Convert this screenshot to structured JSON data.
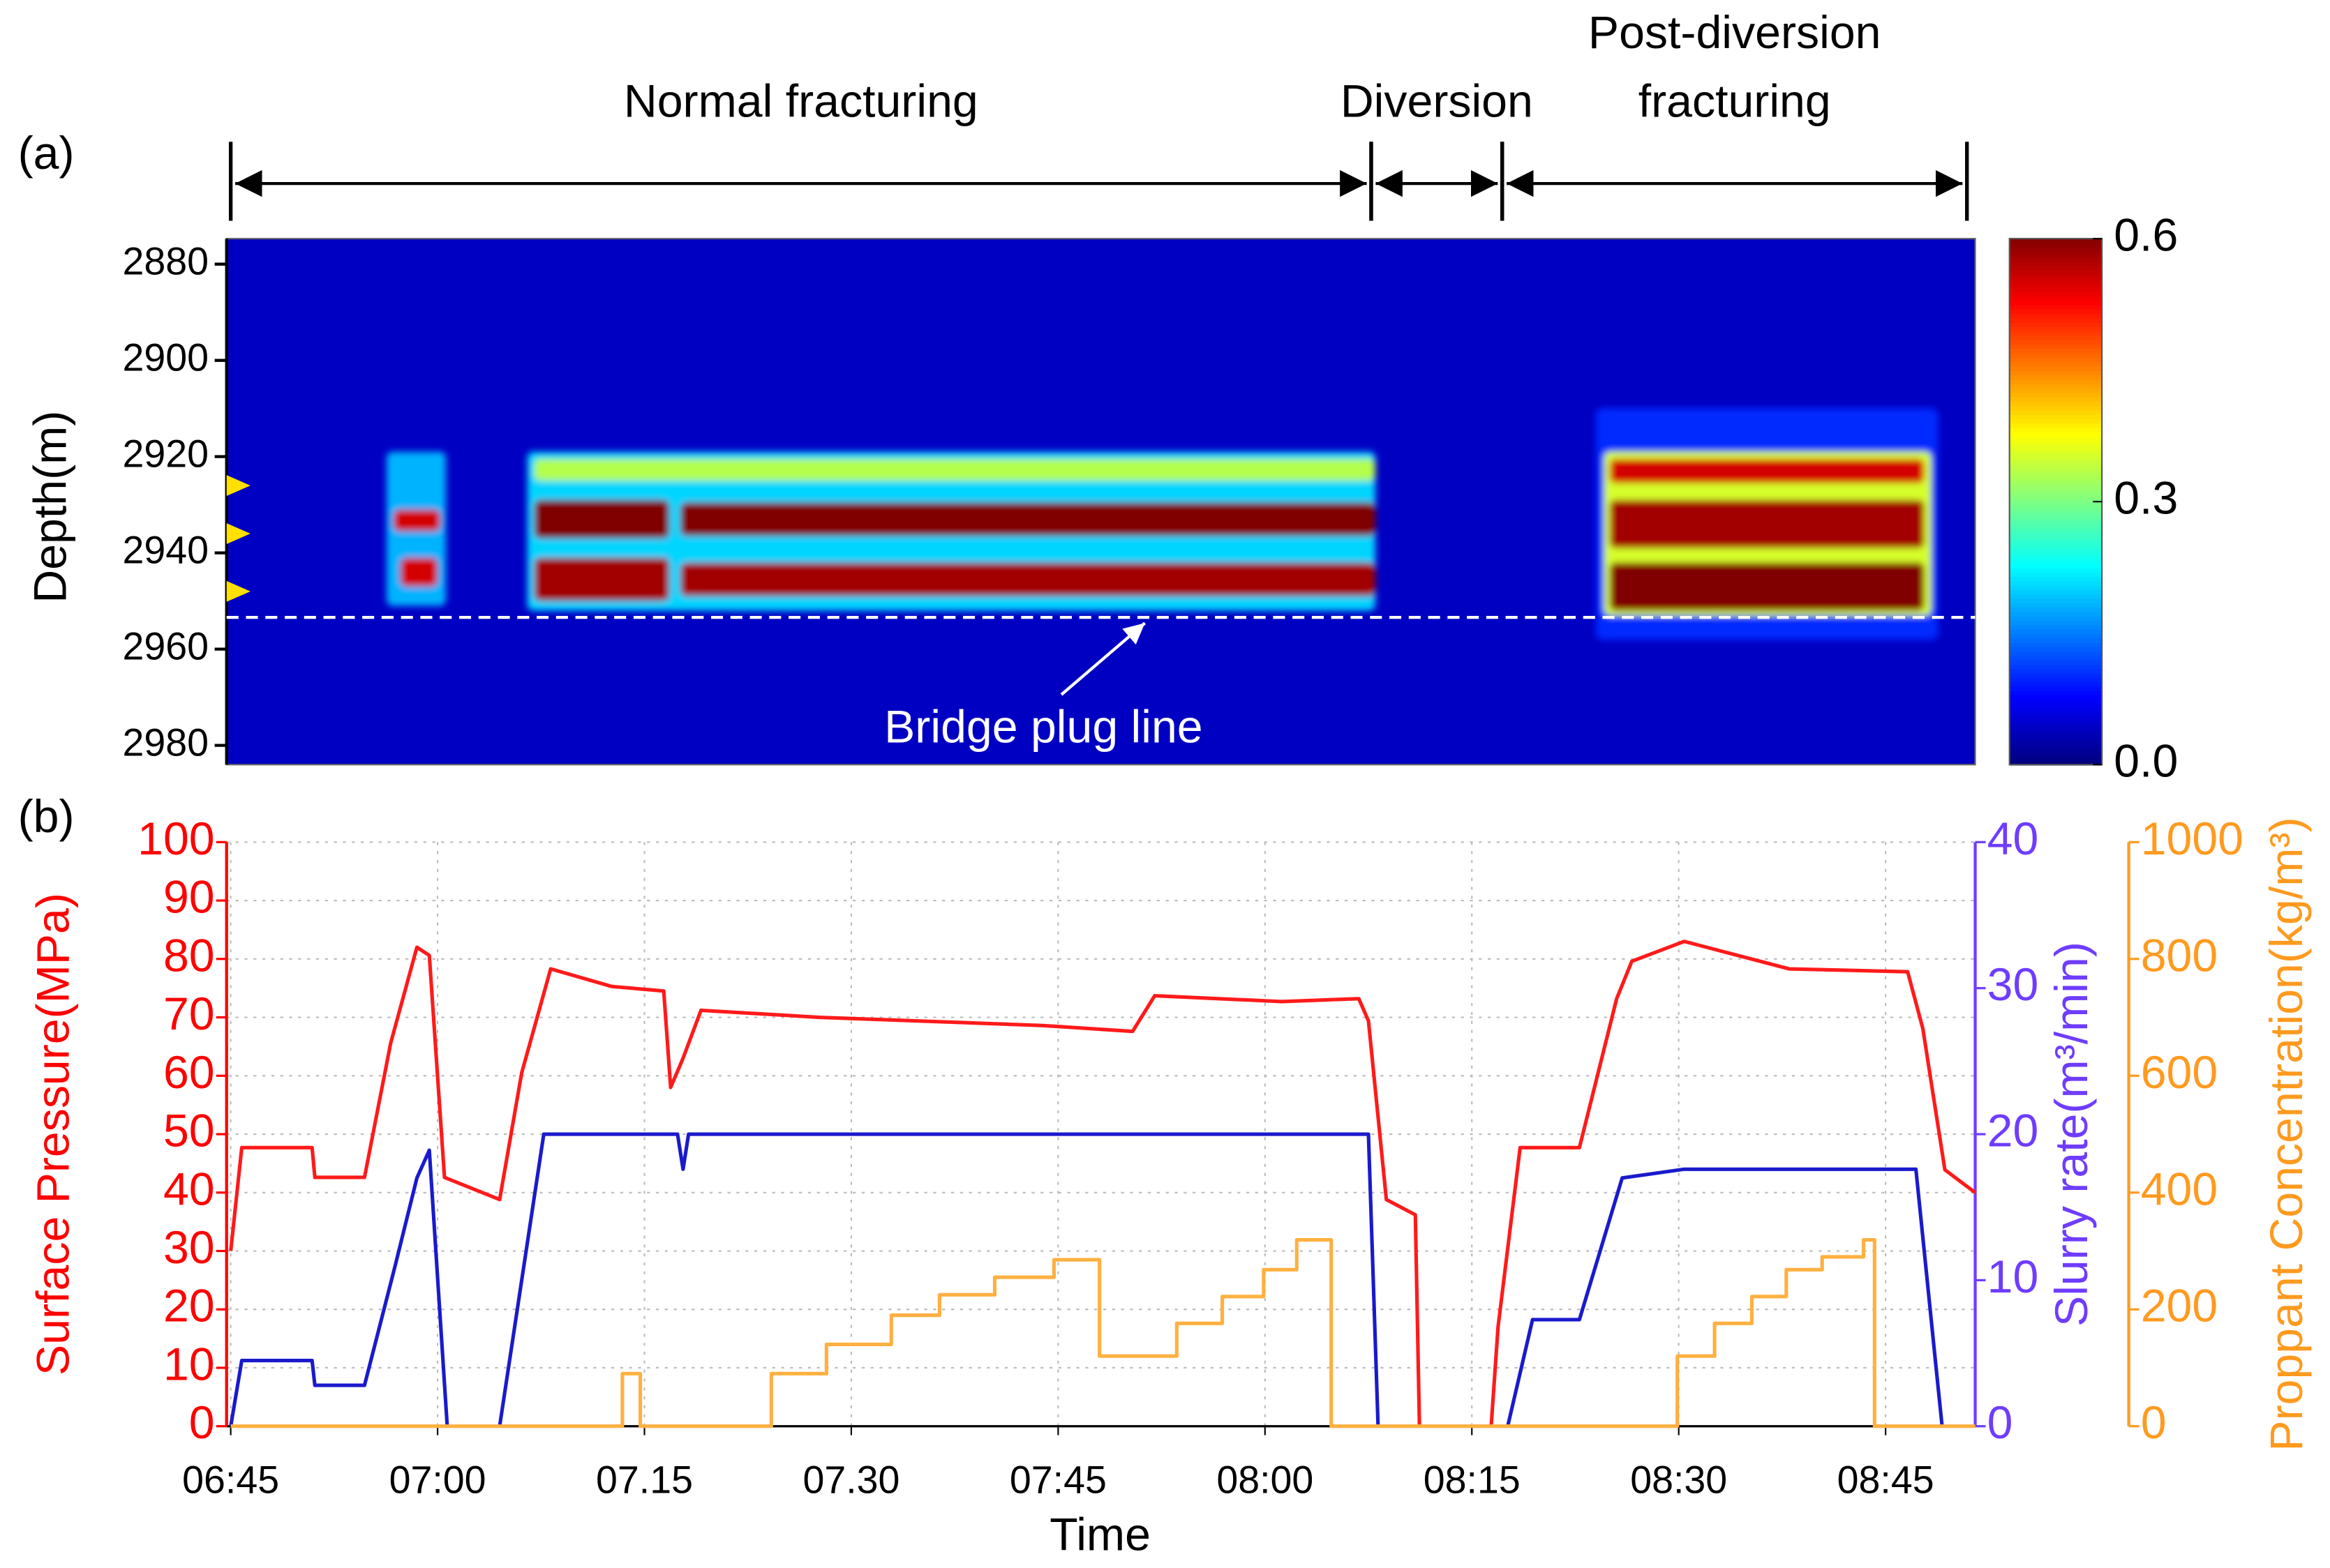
{
  "chart_data": [
    {
      "type": "heatmap",
      "panel_label": "(a)",
      "ylabel": "Depth(m)",
      "xlim": [
        404.7,
        531.5
      ],
      "ylim": [
        2874.7,
        2984
      ],
      "y_inverted": true,
      "yticks": [
        2880,
        2900,
        2920,
        2940,
        2960,
        2980
      ],
      "colormap": "jet",
      "colorbar_lim": [
        0,
        0.6
      ],
      "colorbar_ticks": [
        {
          "value": 0,
          "label": "0.0"
        },
        0.3,
        0.6
      ],
      "background": 0.04,
      "zones": [
        {
          "x": [
            416.3,
            420.6
          ],
          "y": [
            2919,
            2951
          ],
          "value": 0.18
        },
        {
          "x": [
            416.8,
            420.2
          ],
          "y": [
            2931,
            2935.5
          ],
          "value": 0.55
        },
        {
          "x": [
            417.3,
            420
          ],
          "y": [
            2941,
            2947
          ],
          "value": 0.55
        },
        {
          "x": [
            426.5,
            488
          ],
          "y": [
            2919,
            2952
          ],
          "value": 0.2
        },
        {
          "x": [
            427,
            488
          ],
          "y": [
            2920.5,
            2925
          ],
          "value": 0.33
        },
        {
          "x": [
            427,
            436.8
          ],
          "y": [
            2929,
            2937
          ],
          "value": 0.6
        },
        {
          "x": [
            437.6,
            488
          ],
          "y": [
            2929.5,
            2936.5
          ],
          "value": 0.6
        },
        {
          "x": [
            427,
            436.8
          ],
          "y": [
            2941,
            2950
          ],
          "value": 0.58
        },
        {
          "x": [
            437.6,
            488
          ],
          "y": [
            2942,
            2949
          ],
          "value": 0.58
        },
        {
          "x": [
            504,
            528.8
          ],
          "y": [
            2910,
            2958
          ],
          "value": 0.1
        },
        {
          "x": [
            504.6,
            528.3
          ],
          "y": [
            2919,
            2953
          ],
          "value": 0.35
        },
        {
          "x": [
            505,
            527.8
          ],
          "y": [
            2920.5,
            2925.5
          ],
          "value": 0.55
        },
        {
          "x": [
            505,
            527.8
          ],
          "y": [
            2929,
            2939
          ],
          "value": 0.58
        },
        {
          "x": [
            505,
            527.8
          ],
          "y": [
            2942,
            2952
          ],
          "value": 0.6
        }
      ],
      "phases": [
        {
          "label": [
            "Normal fracturing"
          ],
          "start": 405,
          "end": 487.7
        },
        {
          "label": [
            "Diversion"
          ],
          "start": 487.7,
          "end": 497.2
        },
        {
          "label": [
            "Post-diversion",
            "fracturing"
          ],
          "start": 497.2,
          "end": 530.9
        }
      ],
      "perforations": [
        2926,
        2936,
        2948
      ],
      "bridge_plug": {
        "depth": 2953.4,
        "label": "Bridge plug line"
      }
    },
    {
      "type": "line",
      "panel_label": "(b)",
      "xlabel": "Time",
      "xlim": [
        404.7,
        531.5
      ],
      "xticks": [
        {
          "value": 405,
          "label": "06:45"
        },
        {
          "value": 420,
          "label": "07:00"
        },
        {
          "value": 435,
          "label": "07.15"
        },
        {
          "value": 450,
          "label": "07.30"
        },
        {
          "value": 465,
          "label": "07:45"
        },
        {
          "value": 480,
          "label": "08:00"
        },
        {
          "value": 495,
          "label": "08:15"
        },
        {
          "value": 510,
          "label": "08:30"
        },
        {
          "value": 525,
          "label": "08:45"
        }
      ],
      "ylim": [
        0,
        100
      ],
      "yticks": [
        0,
        10,
        20,
        30,
        40,
        50,
        60,
        70,
        80,
        90,
        100
      ],
      "ylabel": "Surface Pressure(MPa)",
      "ycolor": "#ff0000",
      "y2lim": [
        0,
        40
      ],
      "y2ticks": [
        0,
        10,
        20,
        30,
        40
      ],
      "y2label": "Slurry rate(m³/min)",
      "y2color": "#6f3cff",
      "y3lim": [
        0,
        1000
      ],
      "y3ticks": [
        0,
        200,
        400,
        600,
        800,
        1000
      ],
      "y3label": "Proppant Concentration(kg/m³)",
      "y3color": "#ff9a1f",
      "grid": true,
      "series": [
        {
          "name": "Surface Pressure",
          "axis": "y",
          "color": "#ff1a1a",
          "x": [
            405,
            405.8,
            410.9,
            411.1,
            414.7,
            416.6,
            418.5,
            419.4,
            420.5,
            424.5,
            426.1,
            428.2,
            432.6,
            436.4,
            436.9,
            437.8,
            439.1,
            447.7,
            463.9,
            470.4,
            472,
            481.2,
            486.8,
            487.5,
            488.8,
            490.9,
            491.2,
            494,
            496.4,
            496.9,
            498.5,
            502.8,
            505.5,
            506.6,
            510.4,
            518,
            526.6,
            527.7,
            529.3,
            531.5
          ],
          "values": [
            30,
            47.7,
            47.7,
            42.6,
            42.6,
            65.6,
            82,
            80.6,
            42.6,
            38.8,
            60.5,
            78.3,
            75.3,
            74.5,
            58,
            63,
            71.2,
            70,
            68.6,
            67.6,
            73.7,
            72.7,
            73.2,
            69.4,
            38.8,
            36.2,
            0,
            null,
            0,
            17,
            47.7,
            47.7,
            73.2,
            79.6,
            83,
            78.3,
            77.8,
            68.1,
            43.9,
            40
          ]
        },
        {
          "name": "Slurry rate",
          "axis": "y2",
          "color": "#1a1acc",
          "x": [
            405,
            405.8,
            410.9,
            411.1,
            414.7,
            416.9,
            418.5,
            419.4,
            420.7,
            422,
            424.5,
            427.7,
            437.4,
            437.8,
            438.2,
            487.5,
            488.2,
            493,
            497.6,
            499.4,
            502.8,
            505.9,
            510.4,
            527.2,
            528.6,
            529.1
          ],
          "values": [
            0,
            4.5,
            4.5,
            2.8,
            2.8,
            10.9,
            17,
            18.9,
            0,
            null,
            0,
            20,
            20,
            17.6,
            20,
            20,
            0,
            null,
            0,
            7.3,
            7.3,
            17,
            17.6,
            17.6,
            4.6,
            0
          ]
        },
        {
          "name": "Proppant Concentration",
          "axis": "y3",
          "color": "#ffb040",
          "x": [
            405,
            433.4,
            433.4,
            434.7,
            434.7,
            444.2,
            444.2,
            448.2,
            448.2,
            452.9,
            452.9,
            456.4,
            456.4,
            460.4,
            460.4,
            464.7,
            464.7,
            468,
            468,
            473.6,
            473.6,
            476.9,
            476.9,
            479.9,
            479.9,
            482.3,
            482.3,
            484.8,
            484.8,
            509.9,
            509.9,
            512.6,
            512.6,
            515.3,
            515.3,
            517.8,
            517.8,
            520.4,
            520.4,
            523.4,
            523.4,
            524.2,
            524.2,
            531.5
          ],
          "values": [
            0,
            0,
            90,
            90,
            0,
            0,
            90,
            90,
            140,
            140,
            190,
            190,
            225,
            225,
            255,
            255,
            285,
            285,
            120,
            120,
            176,
            176,
            222,
            222,
            268,
            268,
            319,
            319,
            0,
            0,
            120,
            120,
            176,
            176,
            222,
            222,
            268,
            268,
            290,
            290,
            319,
            319,
            0,
            0
          ]
        }
      ]
    }
  ]
}
